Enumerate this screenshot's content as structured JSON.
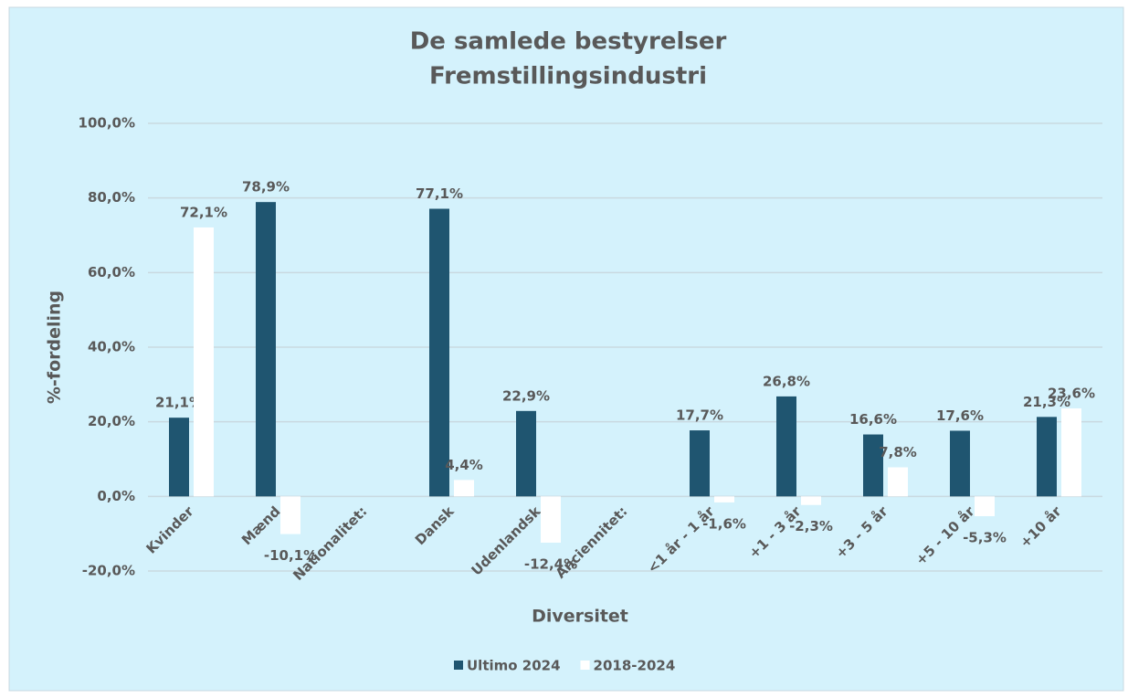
{
  "chart_data": {
    "type": "bar",
    "title": "De samlede bestyrelser",
    "subtitle": "Fremstillingsindustri",
    "x_label": "Diversitet",
    "y_label": "%-fordeling",
    "categories": [
      "Kvinder",
      "Mænd",
      "Nationalitet:",
      "Dansk",
      "Udenlandsk",
      "Anciennitet:",
      "<1 år - 1 år",
      "+1 - 3 år",
      "+3 - 5 år",
      "+5 - 10 år",
      "+10 år"
    ],
    "series": [
      {
        "name": "Ultimo 2024",
        "color": "#1f5570",
        "values": [
          21.1,
          78.9,
          null,
          77.1,
          22.9,
          null,
          17.7,
          26.8,
          16.6,
          17.6,
          21.3
        ],
        "value_labels": [
          "21,1%",
          "78,9%",
          null,
          "77,1%",
          "22,9%",
          null,
          "17,7%",
          "26,8%",
          "16,6%",
          "17,6%",
          "21,3%"
        ]
      },
      {
        "name": "2018-2024",
        "color": "#ffffff",
        "values": [
          72.1,
          -10.1,
          null,
          4.4,
          -12.4,
          null,
          -1.6,
          -2.3,
          7.8,
          -5.3,
          23.6
        ],
        "value_labels": [
          "72,1%",
          "-10,1%",
          null,
          "4,4%",
          "-12,4%",
          null,
          "-1,6%",
          "-2,3%",
          "7,8%",
          "-5,3%",
          "23,6%"
        ]
      }
    ],
    "ylim": [
      -20,
      100
    ],
    "yticks": [
      {
        "value": -20,
        "label": "-20,0%"
      },
      {
        "value": 0,
        "label": "0,0%"
      },
      {
        "value": 20,
        "label": "20,0%"
      },
      {
        "value": 40,
        "label": "40,0%"
      },
      {
        "value": 60,
        "label": "60,0%"
      },
      {
        "value": 80,
        "label": "80,0%"
      },
      {
        "value": 100,
        "label": "100,0%"
      }
    ],
    "grid": true,
    "legend": "bottom"
  }
}
